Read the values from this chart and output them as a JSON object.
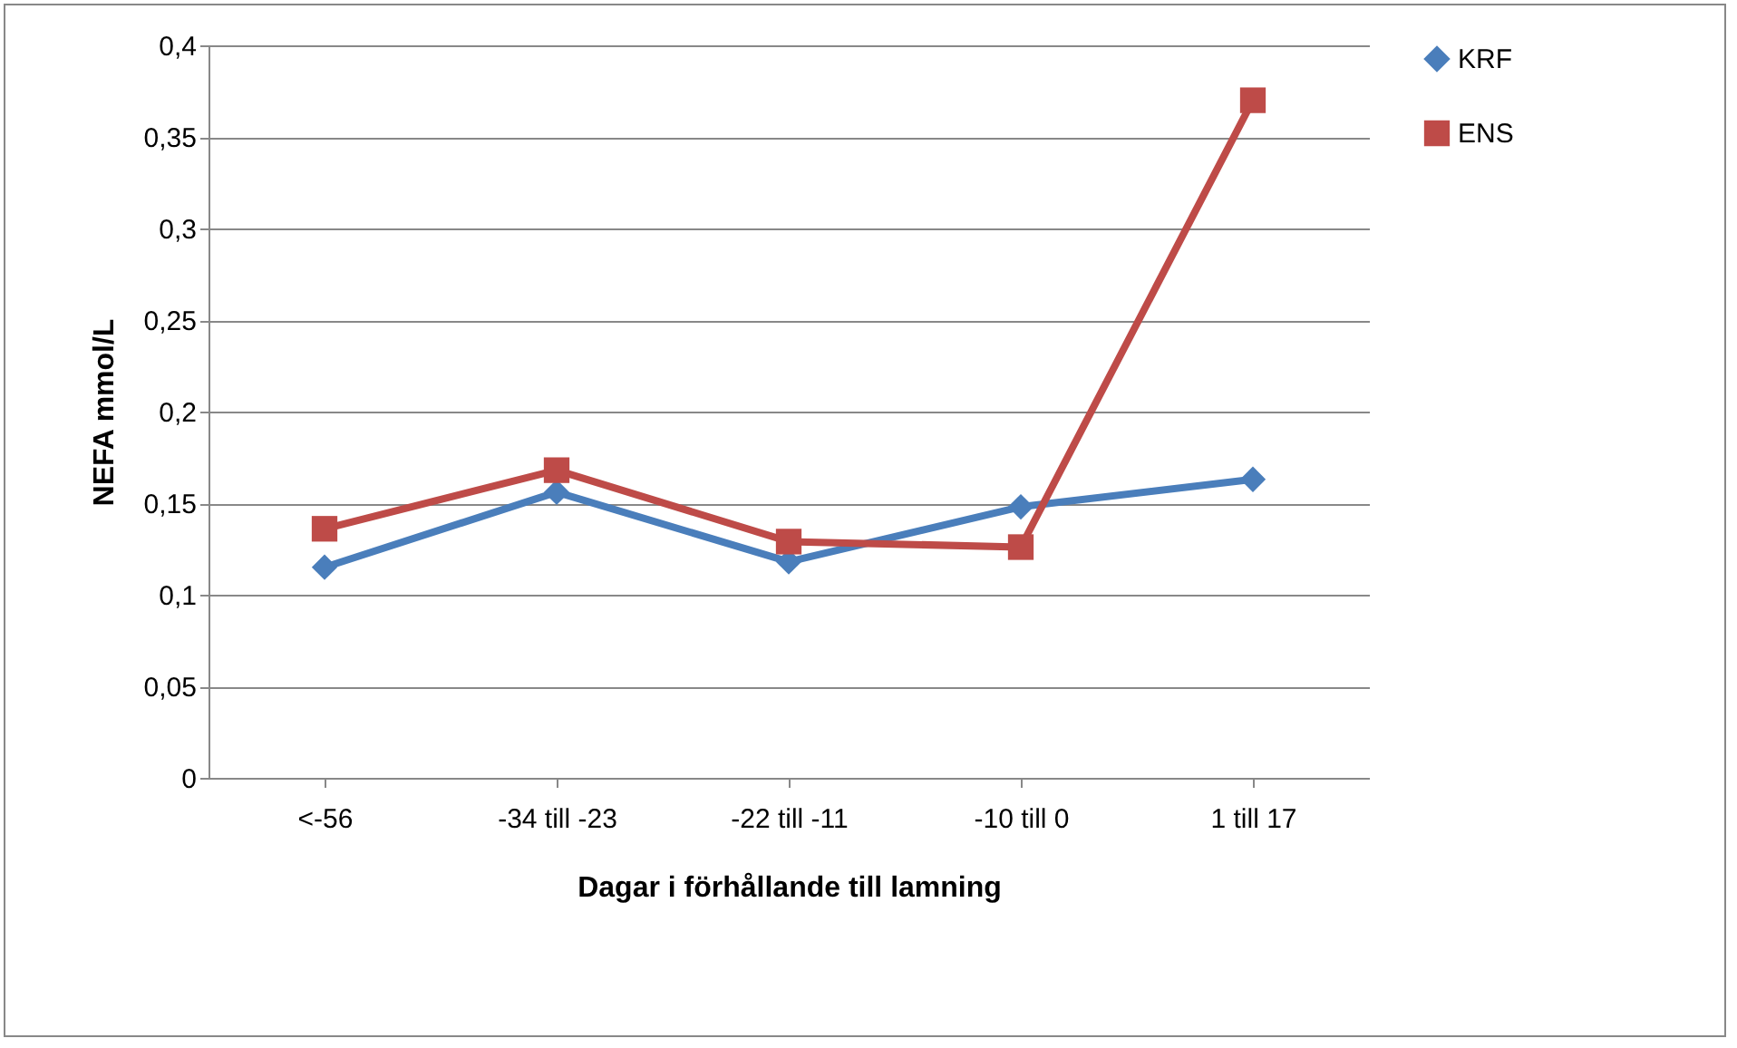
{
  "chart_data": {
    "type": "line",
    "xlabel": "Dagar i förhållande till lamning",
    "ylabel": "NEFA mmol/L",
    "categories": [
      "<-56",
      "-34 till -23",
      "-22 till -11",
      "-10 till 0",
      "1 till 17"
    ],
    "series": [
      {
        "name": "KRF",
        "color": "#4a7ebb",
        "marker": "diamond",
        "values": [
          0.115,
          0.156,
          0.118,
          0.148,
          0.163
        ]
      },
      {
        "name": "ENS",
        "color": "#be4b48",
        "marker": "square",
        "values": [
          0.136,
          0.168,
          0.129,
          0.126,
          0.37
        ]
      }
    ],
    "ylim": [
      0,
      0.4
    ],
    "yticks": [
      {
        "value": 0,
        "label": "0"
      },
      {
        "value": 0.05,
        "label": "0,05"
      },
      {
        "value": 0.1,
        "label": "0,1"
      },
      {
        "value": 0.15,
        "label": "0,15"
      },
      {
        "value": 0.2,
        "label": "0,2"
      },
      {
        "value": 0.25,
        "label": "0,25"
      },
      {
        "value": 0.3,
        "label": "0,3"
      },
      {
        "value": 0.35,
        "label": "0,35"
      },
      {
        "value": 0.4,
        "label": "0,4"
      }
    ],
    "grid": "y",
    "legend": "right",
    "line_style": "solid"
  }
}
